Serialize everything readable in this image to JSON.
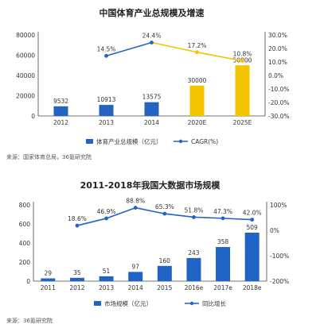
{
  "chart_data": [
    {
      "type": "bar",
      "title": "中国体育产业总规模及增速",
      "categories": [
        "2012",
        "2013",
        "2014",
        "2020E",
        "2025E"
      ],
      "series": [
        {
          "name": "体育产业总规模（亿元）",
          "type": "bar",
          "values": [
            9532,
            10913,
            13575,
            30000,
            50000
          ],
          "value_labels": [
            "9532",
            "10913",
            "13575",
            "30000",
            "50000"
          ],
          "colors": [
            "#2563c0",
            "#2563c0",
            "#2563c0",
            "#f2c500",
            "#f2c500"
          ]
        },
        {
          "name": "CAGR(%)",
          "type": "line",
          "axis": "right",
          "values": [
            null,
            14.5,
            24.4,
            17.2,
            10.8
          ],
          "value_labels": [
            "",
            "14.5%",
            "24.4%",
            "17.2%",
            "10.8%"
          ],
          "point_colors": [
            "",
            "#2563c0",
            "#2563c0",
            "#f2c500",
            "#f2c500"
          ]
        }
      ],
      "ylim": [
        0,
        80000
      ],
      "yticks": [
        "0",
        "20000",
        "40000",
        "60000",
        "80000"
      ],
      "y2lim": [
        -30,
        30
      ],
      "y2ticks": [
        "30.0%",
        "20.0%",
        "10.0%",
        "0.0%",
        "-10.0%",
        "-20.0%",
        "-30.0%"
      ],
      "legend_position": "bottom",
      "source": "来源：国家体育总局，36氪研究院"
    },
    {
      "type": "bar",
      "title": "2011-2018年我国大数据市场规模",
      "categories": [
        "2011",
        "2012",
        "2013",
        "2014",
        "2015",
        "2016e",
        "2017e",
        "2018e"
      ],
      "series": [
        {
          "name": "市场规模（亿元）",
          "type": "bar",
          "values": [
            29,
            35,
            51,
            97,
            160,
            243,
            358,
            509
          ],
          "value_labels": [
            "29",
            "35",
            "51",
            "97",
            "160",
            "243",
            "358",
            "509"
          ]
        },
        {
          "name": "同比增长",
          "type": "line",
          "axis": "right",
          "values": [
            null,
            18.6,
            46.9,
            88.8,
            65.3,
            51.8,
            47.3,
            42.0
          ],
          "value_labels": [
            "",
            "18.6%",
            "46.9%",
            "88.8%",
            "65.3%",
            "51.8%",
            "47.3%",
            "42.0%"
          ]
        }
      ],
      "ylim": [
        0,
        800
      ],
      "yticks": [
        "0",
        "200",
        "400",
        "600",
        "800"
      ],
      "y2lim": [
        -200,
        100
      ],
      "y2ticks": [
        "100%",
        "0%",
        "-100%",
        "-200%"
      ],
      "legend_position": "bottom",
      "source": "来源：36氪研究院"
    }
  ]
}
